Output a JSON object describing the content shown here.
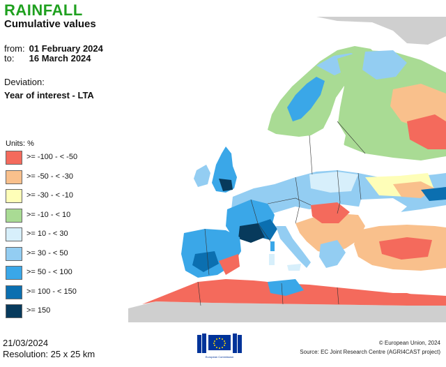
{
  "header": {
    "title": "RAINFALL",
    "subtitle": "Cumulative values",
    "from_label": "from:",
    "from_date": "01 February 2024",
    "to_label": "to:",
    "to_date": "16 March 2024",
    "deviation_label": "Deviation:",
    "deviation_value": "Year of interest - LTA"
  },
  "legend": {
    "units": "Units: %",
    "classes": [
      {
        "label": ">= -100 - < -50",
        "color": "#f46a5c"
      },
      {
        "label": ">= -50 - < -30",
        "color": "#f9c08c"
      },
      {
        "label": ">= -30 - < -10",
        "color": "#fefeb8"
      },
      {
        "label": ">= -10 - < 10",
        "color": "#a9db94"
      },
      {
        "label": ">= 10 - < 30",
        "color": "#d7effb"
      },
      {
        "label": ">= 30 - < 50",
        "color": "#93cdf2"
      },
      {
        "label": ">= 50 - < 100",
        "color": "#3aa7e8"
      },
      {
        "label": ">= 100 - < 150",
        "color": "#0b6fb0"
      },
      {
        "label": ">= 150",
        "color": "#073a5c"
      }
    ]
  },
  "footer": {
    "date": "21/03/2024",
    "resolution": "Resolution: 25 x 25 km",
    "logo_text": "European Commission",
    "copyright": "© European Union, 2024",
    "source": "Source: EC Joint Research Centre (AGRI4CAST project)"
  },
  "colors": {
    "title": "#1fa01f",
    "sea": "#ffffff",
    "no_data_land": "#cfcfcf",
    "borders": "#333333",
    "logo_blue": "#003399",
    "logo_stars": "#ffdd00"
  }
}
